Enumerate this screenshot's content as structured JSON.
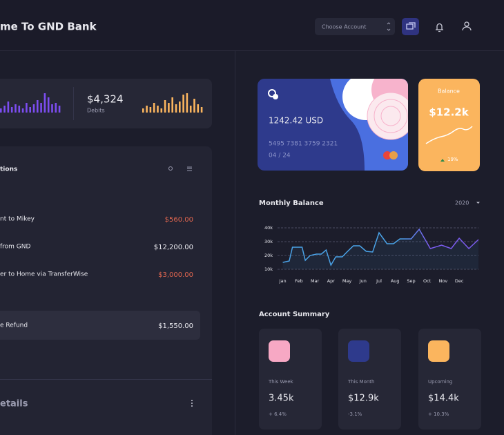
{
  "header": {
    "title": "me To GND Bank",
    "account_select": "Choose Account"
  },
  "summary": {
    "debits_amount": "$4,324",
    "debits_label": "Debits",
    "credits_sparkline": [
      6,
      10,
      16,
      8,
      12,
      10,
      6,
      14,
      8,
      12,
      18,
      14,
      28,
      22,
      12,
      14,
      10
    ],
    "debits_sparkline": [
      6,
      10,
      8,
      14,
      10,
      6,
      18,
      14,
      22,
      12,
      16,
      26,
      28,
      10,
      20,
      12,
      8
    ]
  },
  "transactions": {
    "title": "tions",
    "rows": [
      [
        "nt to Mikey",
        "$560.00"
      ],
      [
        "from GND",
        "$12,200.00"
      ],
      [
        "er to Home via TransferWise",
        "$3,000.00"
      ],
      [
        "e Refund",
        "$1,550.00"
      ]
    ],
    "details_title": "etails"
  },
  "card": {
    "balance": "1242.42 USD",
    "number": "5495 7381 3759 2321",
    "expiry": "04 / 24"
  },
  "balance": {
    "title": "Balance",
    "amount": "$12.2k",
    "change": "19%"
  },
  "chart_data": {
    "type": "line",
    "title": "Monthly Balance",
    "year": "2020",
    "x": [
      0,
      0.4,
      0.6,
      1.2,
      1.4,
      1.7,
      2.1,
      2.4,
      2.7,
      3.0,
      3.3,
      3.7,
      4.0,
      4.4,
      4.8,
      5.2,
      5.6,
      6.0,
      6.5,
      6.9,
      7.3,
      8.0,
      8.5,
      9.2,
      9.9,
      10.5,
      11.0,
      11.6,
      12.2
    ],
    "values": [
      15,
      16,
      26,
      26,
      16.5,
      20,
      21,
      21,
      24,
      13,
      19,
      19,
      22.5,
      27,
      27,
      23,
      22.5,
      36.5,
      28.5,
      28.5,
      32,
      32,
      39,
      25,
      27.5,
      25,
      32.5,
      25,
      31.5
    ],
    "color": "#4aa3e8",
    "color_end": "#7c5cf0",
    "xlim": [
      -0.2,
      12.2
    ],
    "xticks": [
      {
        "value": 0,
        "label": "Jan"
      },
      {
        "value": 1,
        "label": "Feb"
      },
      {
        "value": 2,
        "label": "Mar"
      },
      {
        "value": 3,
        "label": "Apr"
      },
      {
        "value": 4,
        "label": "May"
      },
      {
        "value": 5,
        "label": "Jun"
      },
      {
        "value": 6,
        "label": "Jul"
      },
      {
        "value": 7,
        "label": "Aug"
      },
      {
        "value": 8,
        "label": "Sep"
      },
      {
        "value": 9,
        "label": "Oct"
      },
      {
        "value": 10,
        "label": "Nov"
      },
      {
        "value": 11,
        "label": "Dec"
      }
    ],
    "ylim": [
      10,
      40
    ],
    "yticks": [
      {
        "value": 40,
        "label": "40k"
      },
      {
        "value": 30,
        "label": "30k"
      },
      {
        "value": 20,
        "label": "20k"
      },
      {
        "value": 10,
        "label": "10k"
      }
    ],
    "grid": true
  },
  "account_summary": {
    "title": "Account Summary",
    "items": [
      {
        "label": "This Week",
        "value": "3.45k",
        "change": "+ 6.4%"
      },
      {
        "label": "This Month",
        "value": "$12.9k",
        "change": "-3.1%"
      },
      {
        "label": "Upcoming",
        "value": "$14.4k",
        "change": "+ 10.3%"
      }
    ]
  }
}
